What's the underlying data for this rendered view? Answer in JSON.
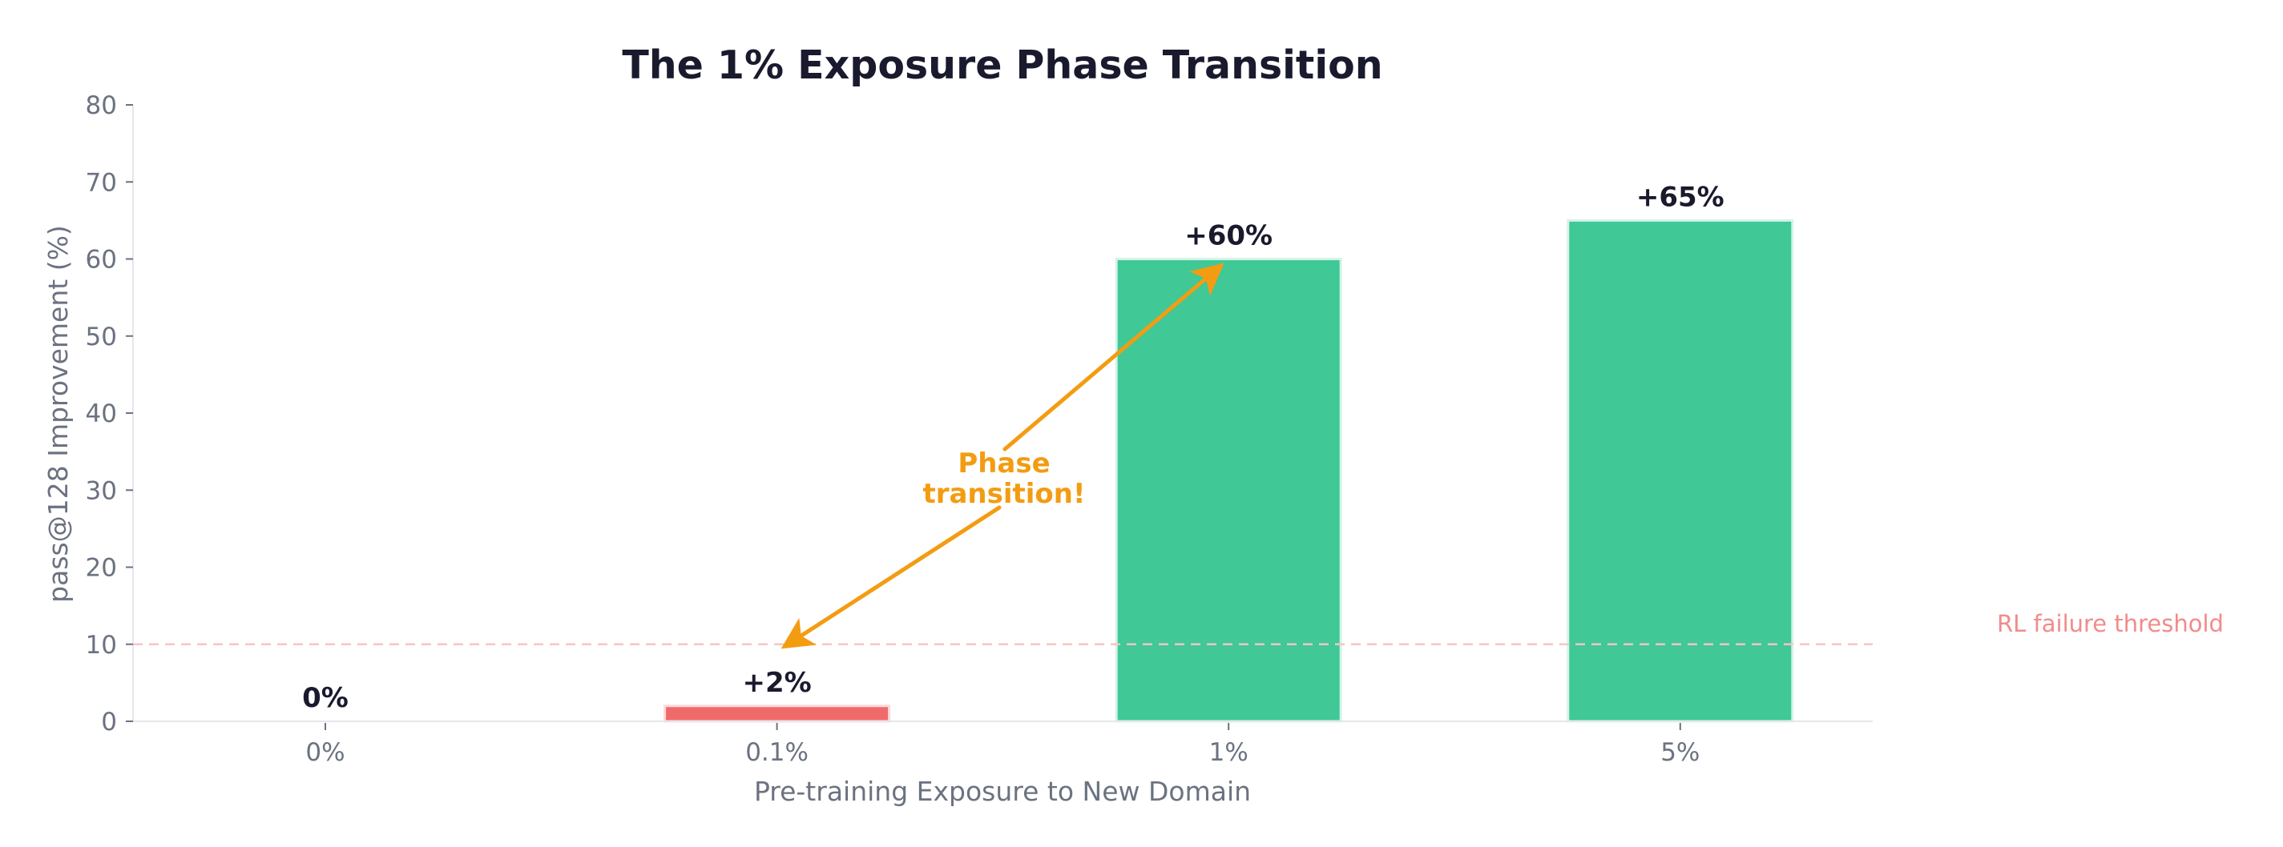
{
  "chart_data": {
    "type": "bar",
    "title": "The 1% Exposure Phase Transition",
    "xlabel": "Pre-training Exposure to New Domain",
    "ylabel": "pass@128 Improvement (%)",
    "categories": [
      "0%",
      "0.1%",
      "1%",
      "5%"
    ],
    "values": [
      0,
      2,
      60,
      65
    ],
    "value_labels": [
      "0%",
      "+2%",
      "+60%",
      "+65%"
    ],
    "bar_colors": [
      "#f06a6a",
      "#f06a6a",
      "#40c897",
      "#40c897"
    ],
    "ylim": [
      0,
      80
    ],
    "yticks": [
      0,
      10,
      20,
      30,
      40,
      50,
      60,
      70,
      80
    ],
    "grid": false,
    "legend": null,
    "reference_line": {
      "y": 10,
      "label": "RL failure threshold",
      "style": "dashed",
      "color": "#f8c4c4",
      "label_color": "#f28b8b"
    },
    "annotation": {
      "text_lines": [
        "Phase",
        "transition!"
      ],
      "color": "#f39c12",
      "arrow_from_category": "0.1%",
      "arrow_from_y": 10,
      "arrow_to_category": "1%",
      "arrow_to_y": 60
    }
  },
  "colors": {
    "title": "#1a1a2e",
    "axis_text": "#6b7280",
    "spine": "#e5e7eb",
    "fail_bar": "#f06a6a",
    "success_bar": "#40c897",
    "accent": "#f39c12"
  }
}
